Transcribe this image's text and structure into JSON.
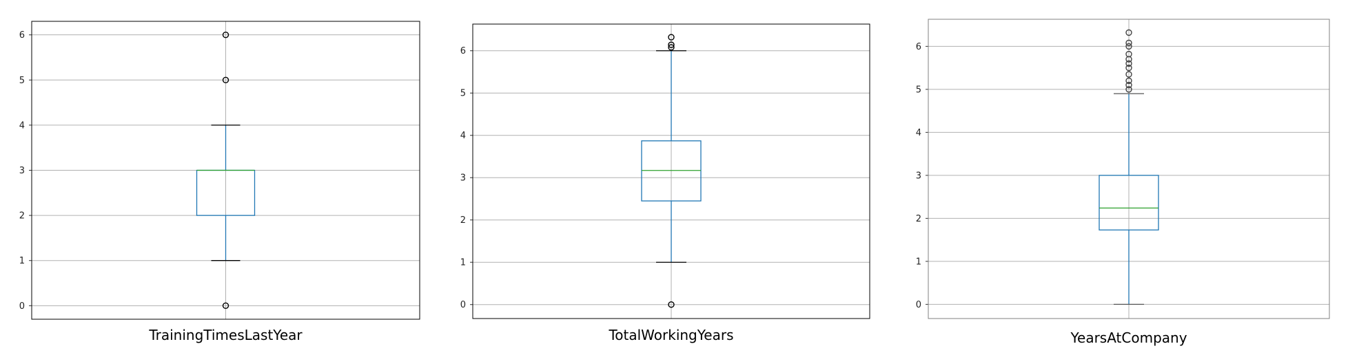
{
  "chart_data": [
    {
      "type": "box",
      "category": "TrainingTimesLastYear",
      "ylim": [
        -0.3,
        6.3
      ],
      "yticks": [
        "0",
        "1",
        "2",
        "3",
        "4",
        "5",
        "6"
      ],
      "grid": true,
      "stats": {
        "whisker_low": 1,
        "q1": 2,
        "median": 3,
        "q3": 3,
        "whisker_high": 4
      },
      "outliers": [
        0,
        5,
        6
      ],
      "colors": {
        "box": "#1f77b4",
        "median": "#2ca02c",
        "whisker_cap": "#000000",
        "outlier": "#000000",
        "grid": "#b0b0b0",
        "frame": "#000000"
      }
    },
    {
      "type": "box",
      "category": "TotalWorkingYears",
      "ylim": [
        -0.33,
        6.63
      ],
      "yticks": [
        "0",
        "1",
        "2",
        "3",
        "4",
        "5",
        "6"
      ],
      "grid": true,
      "stats": {
        "whisker_low": 1,
        "q1": 2.45,
        "median": 3.17,
        "q3": 3.87,
        "whisker_high": 6
      },
      "outliers": [
        0,
        6.08,
        6.14,
        6.32
      ],
      "colors": {
        "box": "#1f77b4",
        "median": "#2ca02c",
        "whisker_cap": "#000000",
        "outlier": "#000000",
        "grid": "#b0b0b0",
        "frame": "#000000"
      }
    },
    {
      "type": "box",
      "category": "YearsAtCompany",
      "ylim": [
        -0.33,
        6.63
      ],
      "yticks": [
        "0",
        "1",
        "2",
        "3",
        "4",
        "5",
        "6"
      ],
      "grid": true,
      "stats": {
        "whisker_low": 0,
        "q1": 1.73,
        "median": 2.24,
        "q3": 3.0,
        "whisker_high": 4.9
      },
      "outliers": [
        5.0,
        5.1,
        5.2,
        5.35,
        5.5,
        5.6,
        5.7,
        5.82,
        6.0,
        6.08,
        6.32
      ],
      "colors": {
        "box": "#1f77b4",
        "median": "#2ca02c",
        "whisker_cap": "#555555",
        "outlier": "#444444",
        "grid": "#b0b0b0",
        "frame": "#808080"
      }
    }
  ]
}
